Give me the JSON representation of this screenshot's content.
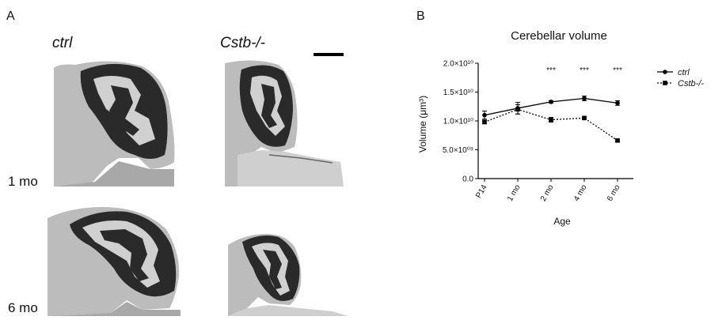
{
  "panel_a": {
    "letter": "A",
    "columns": [
      "ctrl",
      "Cstb-/-"
    ],
    "rows": [
      "1 mo",
      "6 mo"
    ],
    "tissue_color": "#2a2a2a",
    "background_tissue_color": "#bcbcbc"
  },
  "panel_b": {
    "letter": "B"
  },
  "chart_data": {
    "type": "line",
    "title": "Cerebellar volume",
    "xlabel": "Age",
    "ylabel": "Volume (μm³)",
    "categories": [
      "P14",
      "1 mo",
      "2 mo",
      "4 mo",
      "6 mo"
    ],
    "ylim": [
      0,
      20000000000
    ],
    "yticks": [
      0,
      5000000000,
      10000000000,
      15000000000,
      20000000000
    ],
    "ytick_labels": [
      "0.0",
      "5.0×10⁰⁹",
      "1.0×10¹⁰",
      "1.5×10¹⁰",
      "2.0×10¹⁰"
    ],
    "grid": false,
    "legend_position": "right",
    "series": [
      {
        "name": "ctrl",
        "style": "solid",
        "marker": "circle",
        "values": [
          11000000000,
          12200000000,
          13300000000,
          13900000000,
          13100000000
        ],
        "errors": [
          700000000,
          1000000000,
          200000000,
          400000000,
          400000000
        ]
      },
      {
        "name": "Cstb-/-",
        "style": "dotted",
        "marker": "square",
        "values": [
          9800000000,
          12000000000,
          10200000000,
          10500000000,
          6600000000
        ],
        "errors": [
          300000000,
          800000000,
          400000000,
          200000000,
          200000000
        ]
      }
    ],
    "significance": [
      {
        "category": "2 mo",
        "label": "***"
      },
      {
        "category": "4 mo",
        "label": "***"
      },
      {
        "category": "6 mo",
        "label": "***"
      }
    ]
  }
}
